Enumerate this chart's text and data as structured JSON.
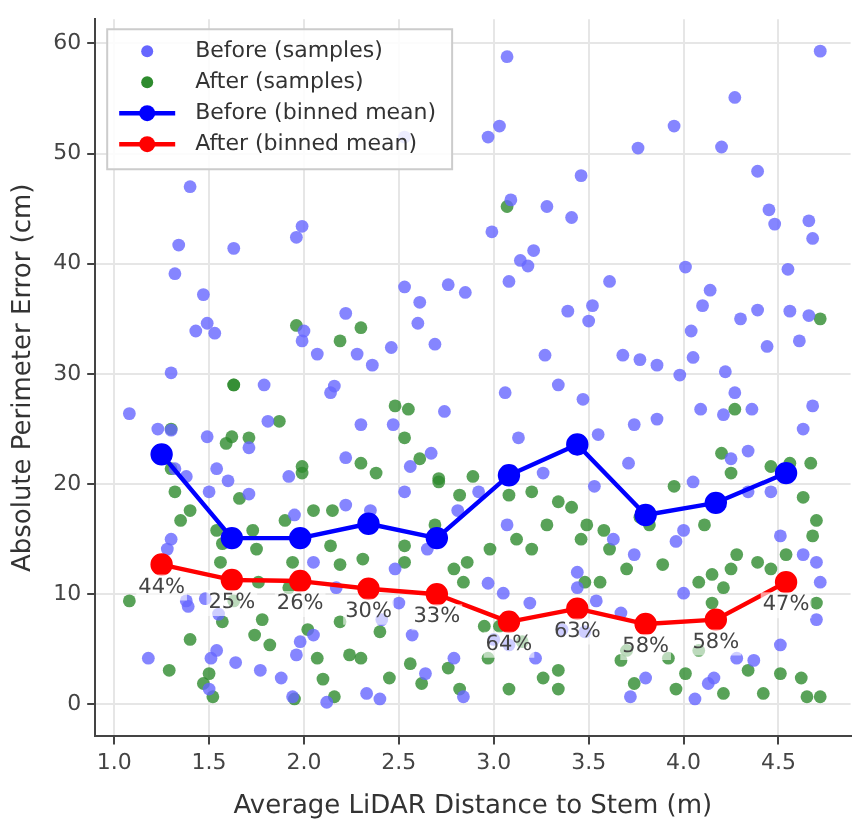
{
  "chart_data": {
    "type": "scatter",
    "xlabel": "Average LiDAR Distance to Stem (m)",
    "ylabel": "Absolute Perimeter Error (cm)",
    "xlim": [
      0.9,
      4.88
    ],
    "ylim": [
      -2.9,
      62.2
    ],
    "xticks": [
      {
        "value": 1,
        "label": "1.0"
      },
      {
        "value": 1.5,
        "label": "1.5"
      },
      {
        "value": 2,
        "label": "2.0"
      },
      {
        "value": 2.5,
        "label": "2.5"
      },
      {
        "value": 3,
        "label": "3.0"
      },
      {
        "value": 3.5,
        "label": "3.5"
      },
      {
        "value": 4,
        "label": "4.0"
      },
      {
        "value": 4.5,
        "label": "4.5"
      }
    ],
    "yticks": [
      0,
      10,
      20,
      30,
      40,
      50,
      60
    ],
    "grid": true,
    "legend": "top left",
    "marker": "circle",
    "series": [
      {
        "name": "Before (samples)",
        "color": "#6666ff",
        "x": [
          1.4,
          1.34,
          1.32,
          1.47,
          1.43,
          1.49,
          1.53,
          1.3,
          1.63,
          1.79,
          1.96,
          1.99,
          2.0,
          1.99,
          2.07,
          2.22,
          2.28,
          2.36,
          2.46,
          2.48,
          2.53,
          2.53,
          2.61,
          2.6,
          2.69,
          3.07,
          4.72,
          4.27,
          3.03,
          2.97,
          3.95,
          3.76,
          4.2,
          3.46,
          4.39,
          3.09,
          3.28,
          3.41,
          4.45,
          4.48,
          4.66,
          4.68,
          2.99,
          3.21,
          3.14,
          3.18,
          4.01,
          4.55,
          2.76,
          2.85,
          3.08,
          3.61,
          4.14,
          3.39,
          3.52,
          3.5,
          4.1,
          4.39,
          4.56,
          4.66,
          4.3,
          4.04,
          4.44,
          4.61,
          3.68,
          3.77,
          3.86,
          4.05,
          3.27,
          4.22,
          3.98,
          3.34,
          3.06,
          4.27,
          1.08,
          1.23,
          1.3,
          1.49,
          1.32,
          1.38,
          1.54,
          1.6,
          1.71,
          1.5,
          1.92,
          1.95,
          1.81,
          1.71,
          1.3,
          1.28,
          1.38,
          1.39,
          1.48,
          1.55,
          1.18,
          1.51,
          1.54,
          1.5,
          1.64,
          1.77,
          1.88,
          1.96,
          1.98,
          1.94,
          2.05,
          2.12,
          2.17,
          2.05,
          2.14,
          2.16,
          2.22,
          2.3,
          2.35,
          2.22,
          2.41,
          2.5,
          2.48,
          2.4,
          2.33,
          2.47,
          2.53,
          2.56,
          2.67,
          2.65,
          2.57,
          2.64,
          2.74,
          3.47,
          3.55,
          3.74,
          3.86,
          4.09,
          4.21,
          4.36,
          4.68,
          4.63,
          3.13,
          3.26,
          3.71,
          4.05,
          4.34,
          4.25,
          2.92,
          2.81,
          3.07,
          3.53,
          3.63,
          3.74,
          3.96,
          4.0,
          4.34,
          4.46,
          4.51,
          4.63,
          4.7,
          4.72,
          2.97,
          3.05,
          3.19,
          3.44,
          3.44,
          3.54,
          3.67,
          4.0,
          4.28,
          4.37,
          4.51,
          4.7,
          2.84,
          3.0,
          3.08,
          3.22,
          3.36,
          3.48,
          3.72,
          3.8,
          4.06,
          4.13,
          4.16,
          2.79
        ],
        "values": [
          47.0,
          41.7,
          39.1,
          37.2,
          33.9,
          34.6,
          33.7,
          30.1,
          41.4,
          29.0,
          42.4,
          43.4,
          33.9,
          33.0,
          31.8,
          35.5,
          31.8,
          30.8,
          32.4,
          null,
          51.5,
          37.9,
          36.5,
          34.6,
          32.7,
          58.8,
          59.3,
          55.1,
          52.5,
          51.5,
          52.5,
          50.5,
          50.6,
          48.0,
          48.4,
          45.8,
          45.2,
          44.2,
          44.9,
          43.6,
          43.9,
          42.3,
          42.9,
          41.2,
          40.3,
          39.8,
          39.7,
          39.5,
          38.1,
          37.4,
          38.4,
          38.4,
          37.6,
          35.7,
          36.2,
          34.8,
          36.2,
          35.8,
          35.7,
          35.3,
          35.0,
          33.9,
          32.5,
          33.0,
          31.7,
          31.3,
          30.8,
          31.5,
          31.7,
          30.2,
          29.9,
          29.0,
          28.3,
          28.3,
          26.4,
          25.0,
          24.9,
          24.3,
          21.4,
          20.7,
          21.4,
          20.3,
          19.1,
          19.3,
          20.7,
          17.2,
          25.7,
          23.3,
          15.0,
          14.1,
          9.4,
          8.9,
          9.6,
          8.2,
          4.2,
          4.2,
          4.9,
          1.4,
          3.8,
          3.1,
          2.4,
          4.5,
          5.7,
          0.7,
          6.3,
          0.2,
          10.6,
          12.9,
          28.3,
          28.9,
          22.4,
          25.4,
          17.6,
          18.1,
          7.7,
          9.2,
          12.3,
          0.5,
          1.0,
          25.4,
          19.3,
          21.6,
          22.8,
          14.1,
          6.3,
          2.8,
          26.6,
          27.7,
          24.5,
          25.4,
          25.9,
          26.8,
          26.3,
          26.8,
          27.1,
          25.0,
          24.2,
          21.0,
          21.9,
          20.2,
          23.0,
          22.3,
          19.3,
          17.6,
          16.3,
          19.8,
          15.0,
          13.6,
          14.8,
          15.8,
          19.3,
          19.3,
          15.3,
          13.6,
          12.9,
          11.1,
          11.0,
          10.1,
          9.2,
          12.0,
          10.6,
          9.4,
          8.3,
          10.1,
          4.2,
          4.0,
          5.4,
          7.7,
          0.7,
          5.9,
          5.4,
          4.2,
          6.8,
          6.6,
          0.7,
          2.4,
          0.5,
          1.9,
          2.4,
          4.2
        ]
      },
      {
        "name": "After (samples)",
        "color": "#2e8b2e",
        "x": [
          1.96,
          2.19,
          2.3,
          1.63,
          3.07,
          4.72,
          1.08,
          1.3,
          1.32,
          1.3,
          1.35,
          1.4,
          1.29,
          1.4,
          1.47,
          1.52,
          1.5,
          1.57,
          1.63,
          1.54,
          1.57,
          1.56,
          1.59,
          1.63,
          1.62,
          1.71,
          1.66,
          1.73,
          1.75,
          1.76,
          1.78,
          1.82,
          1.74,
          1.87,
          1.9,
          1.94,
          1.99,
          1.99,
          1.92,
          2.05,
          1.95,
          2.02,
          2.07,
          2.1,
          2.15,
          2.14,
          2.19,
          2.16,
          2.19,
          2.24,
          2.3,
          2.3,
          2.31,
          2.38,
          2.4,
          2.45,
          2.48,
          2.53,
          2.55,
          2.53,
          2.53,
          2.56,
          2.61,
          2.62,
          2.69,
          2.71,
          2.71,
          2.82,
          2.89,
          3.08,
          3.2,
          3.34,
          3.41,
          3.28,
          3.2,
          3.12,
          2.98,
          2.86,
          2.79,
          2.84,
          2.95,
          3.03,
          3.15,
          2.97,
          2.76,
          2.82,
          3.08,
          3.26,
          3.34,
          3.34,
          3.46,
          3.49,
          3.58,
          3.61,
          3.48,
          3.56,
          3.7,
          3.82,
          3.95,
          3.77,
          3.89,
          3.7,
          3.67,
          3.74,
          3.92,
          3.96,
          4.08,
          4.08,
          4.15,
          4.21,
          4.15,
          4.25,
          4.28,
          4.39,
          4.46,
          4.54,
          4.11,
          4.25,
          4.2,
          4.27,
          4.46,
          4.56,
          4.67,
          4.63,
          4.7,
          4.68,
          4.7,
          4.34,
          4.42,
          4.51,
          4.62,
          4.65,
          4.72,
          4.21,
          4.01
        ],
        "values": [
          34.4,
          33.0,
          34.2,
          29.0,
          45.2,
          35.0,
          9.4,
          21.4,
          19.3,
          25.0,
          16.7,
          17.6,
          3.1,
          5.9,
          1.9,
          0.7,
          2.8,
          7.5,
          9.4,
          15.8,
          14.6,
          12.9,
          23.7,
          29.0,
          24.3,
          24.2,
          18.7,
          15.8,
          14.1,
          11.1,
          7.7,
          5.4,
          6.3,
          25.7,
          16.7,
          12.9,
          21.6,
          21.0,
          10.6,
          17.6,
          0.5,
          6.8,
          4.2,
          2.3,
          17.6,
          14.4,
          12.7,
          0.7,
          7.5,
          4.5,
          4.2,
          21.9,
          13.2,
          21.0,
          6.6,
          2.4,
          27.1,
          24.2,
          26.8,
          14.4,
          12.9,
          3.7,
          22.3,
          1.9,
          16.3,
          20.5,
          20.2,
          19.0,
          20.7,
          19.0,
          19.3,
          18.4,
          17.9,
          16.3,
          14.1,
          15.0,
          14.1,
          12.9,
          12.3,
          11.1,
          7.1,
          7.1,
          5.7,
          4.2,
          3.3,
          1.4,
          1.4,
          2.4,
          3.1,
          1.4,
          15.0,
          16.3,
          15.8,
          14.1,
          11.1,
          11.1,
          12.3,
          16.3,
          19.8,
          17.0,
          12.7,
          4.9,
          4.0,
          1.9,
          4.2,
          1.4,
          4.9,
          11.1,
          11.8,
          10.6,
          9.2,
          12.3,
          13.6,
          12.9,
          12.3,
          13.6,
          16.3,
          21.0,
          22.8,
          26.8,
          21.6,
          21.9,
          21.9,
          18.8,
          16.7,
          15.3,
          9.2,
          3.1,
          1.0,
          2.8,
          2.4,
          0.7,
          0.7,
          1.0,
          2.8
        ]
      },
      {
        "name": "Before (binned mean)",
        "type": "line",
        "color": "#0000ff",
        "x": [
          1.25,
          1.62,
          1.98,
          2.34,
          2.7,
          3.08,
          3.44,
          3.8,
          4.17,
          4.54
        ],
        "values": [
          22.7,
          15.1,
          15.1,
          16.4,
          15.1,
          20.8,
          23.6,
          17.2,
          18.3,
          21.0
        ]
      },
      {
        "name": "After (binned mean)",
        "type": "line",
        "color": "#ff0000",
        "x": [
          1.25,
          1.62,
          1.98,
          2.34,
          2.7,
          3.08,
          3.44,
          3.8,
          4.17,
          4.54
        ],
        "values": [
          12.7,
          11.3,
          11.2,
          10.5,
          10.0,
          7.5,
          8.7,
          7.3,
          7.7,
          11.1
        ]
      }
    ],
    "annotations": [
      {
        "text": "44%",
        "x": 1.25,
        "y": 12.7
      },
      {
        "text": "25%",
        "x": 1.62,
        "y": 11.3
      },
      {
        "text": "26%",
        "x": 1.98,
        "y": 11.2
      },
      {
        "text": "30%",
        "x": 2.34,
        "y": 10.5
      },
      {
        "text": "33%",
        "x": 2.7,
        "y": 10.0
      },
      {
        "text": "64%",
        "x": 3.08,
        "y": 7.5
      },
      {
        "text": "63%",
        "x": 3.44,
        "y": 8.7
      },
      {
        "text": "58%",
        "x": 3.8,
        "y": 7.3
      },
      {
        "text": "58%",
        "x": 4.17,
        "y": 7.7
      },
      {
        "text": "47%",
        "x": 4.54,
        "y": 11.1
      }
    ]
  }
}
